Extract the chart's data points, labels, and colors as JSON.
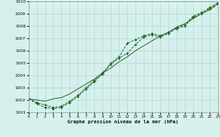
{
  "xlabel": "Graphe pression niveau de la mer (hPa)",
  "ylim": [
    1001,
    1010
  ],
  "xlim": [
    0,
    23
  ],
  "yticks": [
    1001,
    1002,
    1003,
    1004,
    1005,
    1006,
    1007,
    1008,
    1009,
    1010
  ],
  "xticks": [
    0,
    1,
    2,
    3,
    4,
    5,
    6,
    7,
    8,
    9,
    10,
    11,
    12,
    13,
    14,
    15,
    16,
    17,
    18,
    19,
    20,
    21,
    22,
    23
  ],
  "background_color": "#d6f0ee",
  "grid_color": "#b0d8cc",
  "line_color": "#1a5c1a",
  "series1_x": [
    0,
    1,
    2,
    3,
    4,
    5,
    6,
    7,
    8,
    9,
    10,
    11,
    12,
    13,
    14,
    15,
    16,
    17,
    18,
    19,
    20,
    21,
    22,
    23
  ],
  "series1_y": [
    1002.1,
    1001.8,
    1001.6,
    1001.4,
    1001.5,
    1001.9,
    1002.4,
    1003.0,
    1003.6,
    1004.2,
    1005.0,
    1005.5,
    1006.6,
    1006.9,
    1007.2,
    1007.4,
    1007.2,
    1007.5,
    1007.9,
    1008.1,
    1008.8,
    1009.1,
    1009.4,
    1009.8
  ],
  "series2_x": [
    0,
    1,
    2,
    3,
    4,
    5,
    6,
    7,
    8,
    9,
    10,
    11,
    12,
    13,
    14,
    15,
    16,
    17,
    18,
    19,
    20,
    21,
    22,
    23
  ],
  "series2_y": [
    1002.1,
    1002.0,
    1001.9,
    1002.1,
    1002.2,
    1002.5,
    1002.9,
    1003.3,
    1003.7,
    1004.2,
    1004.6,
    1005.1,
    1005.5,
    1006.0,
    1006.4,
    1006.8,
    1007.2,
    1007.5,
    1007.9,
    1008.2,
    1008.6,
    1009.0,
    1009.3,
    1009.8
  ],
  "series3_x": [
    0,
    1,
    2,
    3,
    4,
    5,
    6,
    7,
    8,
    9,
    10,
    11,
    12,
    13,
    14,
    15,
    16,
    17,
    18,
    19,
    20,
    21,
    22,
    23
  ],
  "series3_y": [
    1002.1,
    1001.7,
    1001.4,
    1001.3,
    1001.4,
    1001.8,
    1002.3,
    1002.9,
    1003.5,
    1004.1,
    1004.9,
    1005.4,
    1005.8,
    1006.5,
    1007.1,
    1007.3,
    1007.1,
    1007.4,
    1007.8,
    1008.0,
    1008.7,
    1009.0,
    1009.5,
    1009.9
  ]
}
